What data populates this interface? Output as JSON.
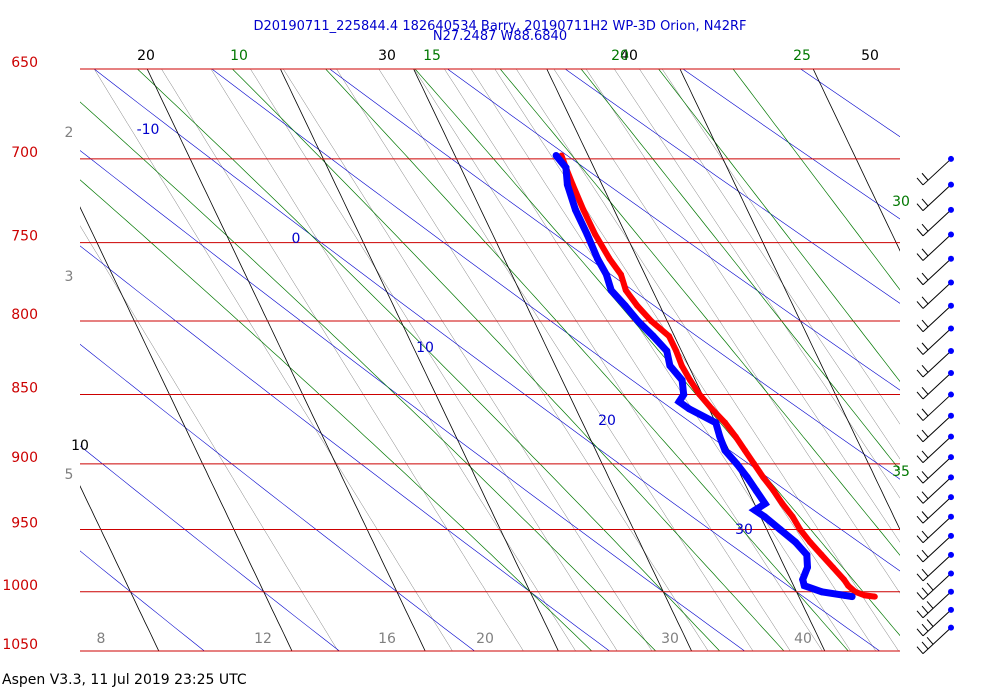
{
  "header": {
    "title_line1": "D20190711_225844.4 182640534 Barry, 20190711H2 WP-3D Orion, N42RF",
    "title_line2": "N27.2487 W88.6840"
  },
  "footer": {
    "version_text": "Aspen V3.3, 11 Jul 2019  23:25 UTC"
  },
  "colors": {
    "isobar": "#cc0000",
    "isotherm": "#000000",
    "dry_adiabat": "#0000cc",
    "moist_adiabat": "#007700",
    "mixing_ratio": "#808080",
    "temperature": "#ff0000",
    "dewpoint": "#0000ff",
    "wind_barb": "#0000ff"
  },
  "chart_data": {
    "type": "skew-t",
    "pressure_labels": [
      "650",
      "700",
      "750",
      "800",
      "850",
      "900",
      "950",
      "1000",
      "1050"
    ],
    "pressures": [
      650,
      700,
      750,
      800,
      850,
      900,
      950,
      1000,
      1050
    ],
    "isotherm_labels_top": [
      "20",
      "30",
      "40",
      "50"
    ],
    "isotherm_label_left": "10",
    "moist_adiabat_labels_top": [
      "10",
      "15",
      "20",
      "25"
    ],
    "moist_adiabat_labels_right": [
      "30",
      "35"
    ],
    "dry_adiabat_labels": [
      "-10",
      "0",
      "10",
      "20",
      "30"
    ],
    "mixing_ratio_labels_bottom": [
      "8",
      "12",
      "16",
      "20",
      "30",
      "40"
    ],
    "mixing_ratio_labels_left": [
      "2",
      "3",
      "5"
    ],
    "temperature_series": {
      "p": [
        698,
        705,
        715,
        730,
        745,
        760,
        770,
        780,
        790,
        800,
        810,
        820,
        830,
        840,
        850,
        860,
        870,
        880,
        890,
        900,
        910,
        920,
        930,
        940,
        950,
        960,
        970,
        980,
        990,
        995,
        1000,
        1003,
        1004
      ],
      "t": [
        18.0,
        17.9,
        17.8,
        17.7,
        17.7,
        17.9,
        18.2,
        18.0,
        18.3,
        18.8,
        19.6,
        19.6,
        19.5,
        19.6,
        19.8,
        20.2,
        20.7,
        21.0,
        21.2,
        21.4,
        21.6,
        21.9,
        22.1,
        22.4,
        22.5,
        22.8,
        23.2,
        23.6,
        24.0,
        24.1,
        24.4,
        25.0,
        25.7
      ]
    },
    "dewpoint_series": {
      "p": [
        698,
        705,
        715,
        730,
        745,
        760,
        770,
        780,
        790,
        800,
        810,
        820,
        830,
        840,
        850,
        855,
        860,
        870,
        880,
        890,
        900,
        910,
        920,
        930,
        935,
        940,
        950,
        960,
        970,
        980,
        990,
        995,
        1000,
        1003,
        1004
      ],
      "td": [
        17.6,
        17.9,
        17.4,
        17.1,
        17.1,
        17.0,
        17.1,
        16.9,
        17.4,
        17.8,
        18.4,
        18.9,
        18.6,
        19.0,
        18.6,
        18.0,
        18.5,
        20.0,
        19.8,
        19.7,
        20.1,
        20.4,
        20.6,
        20.8,
        19.8,
        20.3,
        21.0,
        21.7,
        22.1,
        21.7,
        20.9,
        20.8,
        21.9,
        23.5,
        24.0
      ]
    },
    "wind_barb_pressures": [
      700,
      715,
      730,
      745,
      760,
      775,
      790,
      805,
      820,
      835,
      850,
      865,
      880,
      895,
      910,
      925,
      940,
      955,
      970,
      985,
      1000,
      1015,
      1030
    ]
  }
}
